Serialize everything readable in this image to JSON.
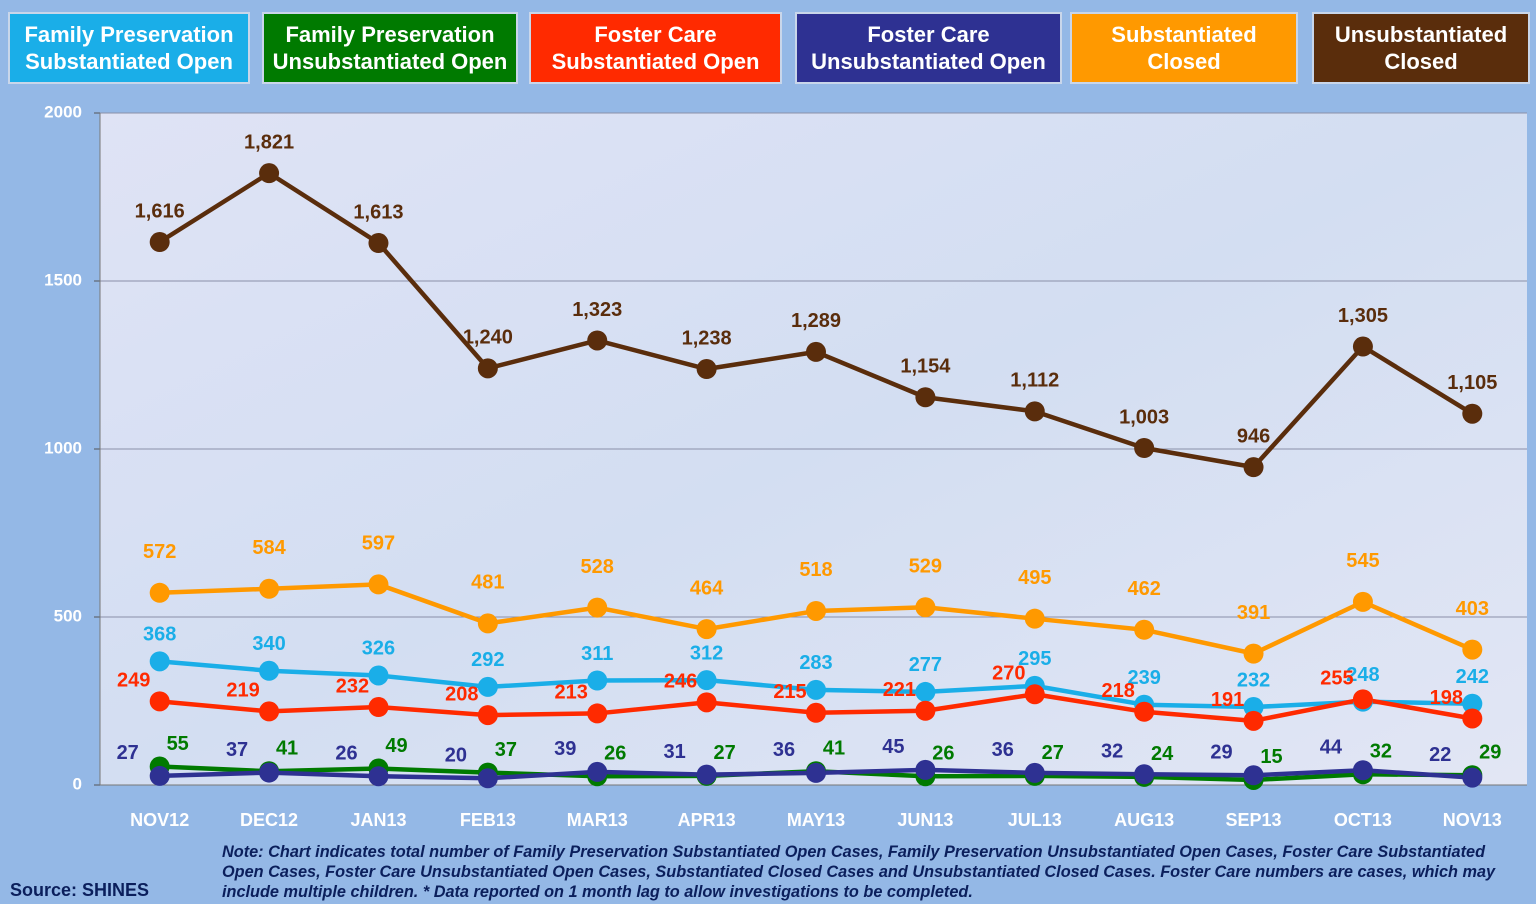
{
  "chart_data": {
    "type": "line",
    "categories": [
      "NOV12",
      "DEC12",
      "JAN13",
      "FEB13",
      "MAR13",
      "APR13",
      "MAY13",
      "JUN13",
      "JUL13",
      "AUG13",
      "SEP13",
      "OCT13",
      "NOV13"
    ],
    "series": [
      {
        "name": "Family Preservation Substantiated Open",
        "color": "#1aaee8",
        "values": [
          368,
          340,
          326,
          292,
          311,
          312,
          283,
          277,
          295,
          239,
          232,
          248,
          242
        ]
      },
      {
        "name": "Family Preservation Unsubstantiated Open",
        "color": "#007a00",
        "values": [
          55,
          41,
          49,
          37,
          26,
          27,
          41,
          26,
          27,
          24,
          15,
          32,
          29
        ]
      },
      {
        "name": "Foster Care Substantiated Open",
        "color": "#ff2a00",
        "values": [
          249,
          219,
          232,
          208,
          213,
          246,
          215,
          221,
          270,
          218,
          191,
          255,
          198
        ]
      },
      {
        "name": "Foster Care Unsubstantiated Open",
        "color": "#2e3192",
        "values": [
          27,
          37,
          26,
          20,
          39,
          31,
          36,
          45,
          36,
          32,
          29,
          44,
          22
        ]
      },
      {
        "name": "Substantiated Closed",
        "color": "#ff9900",
        "values": [
          572,
          584,
          597,
          481,
          528,
          464,
          518,
          529,
          495,
          462,
          391,
          545,
          403
        ]
      },
      {
        "name": "Unsubstantiated Closed",
        "color": "#5a2d0c",
        "values": [
          1616,
          1821,
          1613,
          1240,
          1323,
          1238,
          1289,
          1154,
          1112,
          1003,
          946,
          1305,
          1105
        ],
        "value_labels": [
          "1,616",
          "1,821",
          "1,613",
          "1,240",
          "1,323",
          "1,238",
          "1,289",
          "1,154",
          "1,112",
          "1,003",
          "946",
          "1,305",
          "1,105"
        ]
      }
    ],
    "ylim": [
      0,
      2000
    ],
    "yticks": [
      0,
      500,
      1000,
      1500,
      2000
    ],
    "grid": true,
    "note": "Note:  Chart indicates total number of Family Preservation Substantiated Open Cases, Family Preservation Unsubstantiated Open Cases, Foster Care Substantiated Open Cases, Foster Care Unsubstantiated Open Cases, Substantiated Closed Cases and Unsubstantiated Closed Cases. Foster Care numbers are cases, which may include multiple children.  * Data reported on 1 month lag to allow investigations to be completed.",
    "source": "Source: SHINES"
  }
}
